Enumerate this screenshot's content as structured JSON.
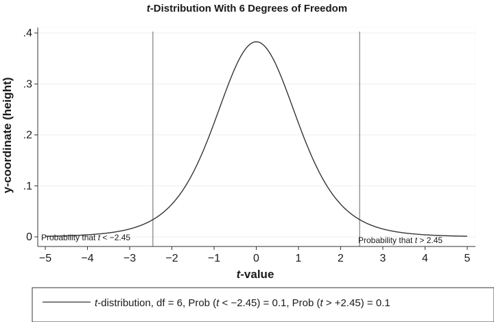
{
  "chart_data": {
    "type": "line",
    "title_prefix": "t",
    "title_rest": "-Distribution With 6 Degrees of Freedom",
    "xlabel_prefix": "t",
    "xlabel_rest": "-value",
    "ylabel": "y-coordinate (height)",
    "xlim": [
      -5,
      5
    ],
    "ylim": [
      0,
      0.4
    ],
    "x_ticks": [
      -5,
      -4,
      -3,
      -2,
      -1,
      0,
      1,
      2,
      3,
      4,
      5
    ],
    "x_tick_labels": [
      "−5",
      "−4",
      "−3",
      "−2",
      "−1",
      "0",
      "1",
      "2",
      "3",
      "4",
      "5"
    ],
    "y_ticks": [
      0,
      0.1,
      0.2,
      0.3,
      0.4
    ],
    "y_tick_labels": [
      "0",
      ".1",
      ".2",
      ".3",
      ".4"
    ],
    "grid": true,
    "series": [
      {
        "name_parts": [
          "t",
          "-distribution, df = 6, Prob (",
          "t",
          " < −2.45) = 0.1, Prob (",
          "t",
          " > +2.45) = 0.1"
        ],
        "x": [
          -5,
          -4.5,
          -4,
          -3.5,
          -3,
          -2.5,
          -2,
          -1.5,
          -1,
          -0.5,
          0,
          0.5,
          1,
          1.5,
          2,
          2.5,
          3,
          3.5,
          4,
          4.5,
          5
        ],
        "y": [
          0.0042,
          0.0066,
          0.0106,
          0.0173,
          0.0283,
          0.0456,
          0.0707,
          0.1037,
          0.2231,
          0.3347,
          0.3827,
          0.3347,
          0.2231,
          0.1037,
          0.0707,
          0.0456,
          0.0283,
          0.0173,
          0.0106,
          0.0066,
          0.0042
        ],
        "df": 6
      }
    ],
    "critical_values": [
      -2.45,
      2.45
    ],
    "annotations": [
      {
        "parts": [
          "Probability that ",
          "t",
          " < −2.45"
        ]
      },
      {
        "parts": [
          "Probability that ",
          "t",
          " > 2.45"
        ]
      }
    ],
    "legend_position": "bottom"
  }
}
